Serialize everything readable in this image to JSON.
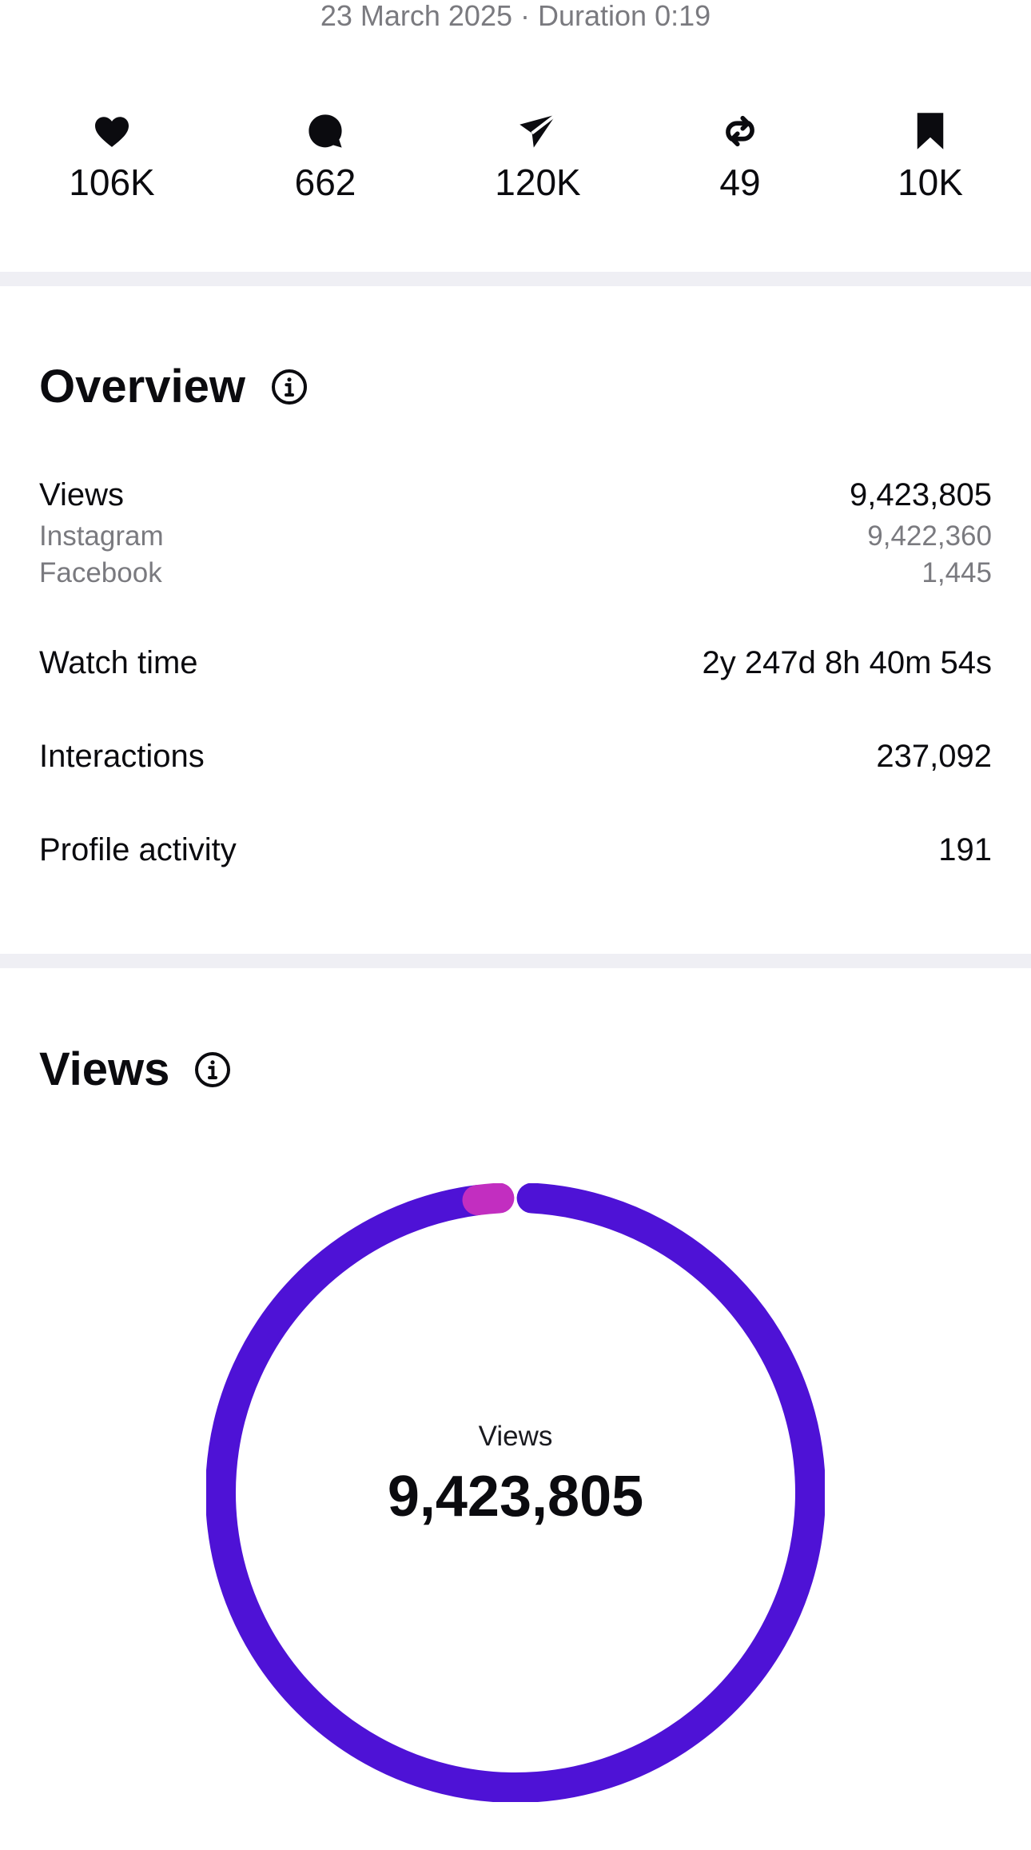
{
  "header": {
    "date": "23 March 2025",
    "separator": "·",
    "duration_label": "Duration",
    "duration": "0:19",
    "date_line": "23 March 2025 · Duration 0:19"
  },
  "stats": [
    {
      "icon": "heart-icon",
      "count": "106K"
    },
    {
      "icon": "comment-icon",
      "count": "662"
    },
    {
      "icon": "share-send-icon",
      "count": "120K"
    },
    {
      "icon": "repost-icon",
      "count": "49"
    },
    {
      "icon": "bookmark-icon",
      "count": "10K"
    }
  ],
  "overview": {
    "title": "Overview",
    "views_label": "Views",
    "views_value": "9,423,805",
    "instagram_label": "Instagram",
    "instagram_value": "9,422,360",
    "facebook_label": "Facebook",
    "facebook_value": "1,445",
    "watch_time_label": "Watch time",
    "watch_time_value": "2y 247d 8h 40m 54s",
    "interactions_label": "Interactions",
    "interactions_value": "237,092",
    "profile_activity_label": "Profile activity",
    "profile_activity_value": "191"
  },
  "views_section": {
    "title": "Views",
    "center_label": "Views",
    "center_value": "9,423,805",
    "segments": [
      {
        "name": "Instagram",
        "value": 9422360,
        "color": "#4e12d6"
      },
      {
        "name": "Facebook",
        "value": 1445,
        "color": "#c22ec0"
      }
    ]
  },
  "colors": {
    "text": "#0b0b0f",
    "muted": "#7a7a7f",
    "divider": "#efeff4",
    "instagram": "#4e12d6",
    "facebook": "#c22ec0"
  }
}
